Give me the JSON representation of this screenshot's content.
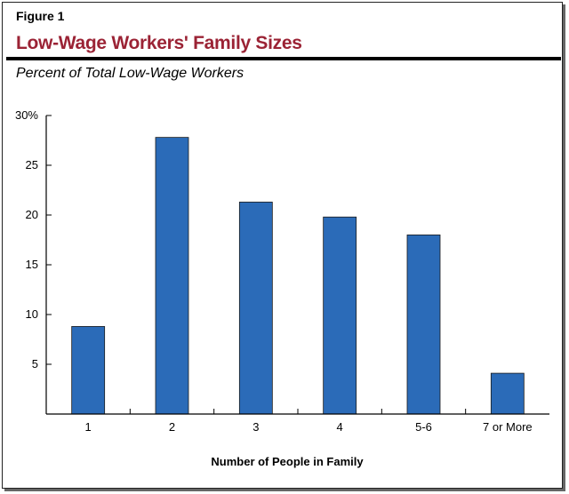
{
  "figure": {
    "label": "Figure 1",
    "title": "Low-Wage Workers' Family Sizes",
    "subtitle": "Percent of Total Low-Wage Workers"
  },
  "colors": {
    "title": "#9b2335",
    "bar": "#2b6bb8",
    "axis": "#000000"
  },
  "chart_data": {
    "type": "bar",
    "title": "Low-Wage Workers' Family Sizes",
    "subtitle": "Percent of Total Low-Wage Workers",
    "categories": [
      "1",
      "2",
      "3",
      "4",
      "5-6",
      "7 or More"
    ],
    "values": [
      8.8,
      27.8,
      21.3,
      19.8,
      18.0,
      4.1
    ],
    "xlabel": "Number of People in Family",
    "ylabel": "",
    "ylim": [
      0,
      30
    ],
    "yticks": [
      5,
      10,
      15,
      20,
      25,
      30
    ],
    "ytick_labels": [
      "5",
      "10",
      "15",
      "20",
      "25",
      "30%"
    ],
    "grid": false,
    "legend": "none"
  }
}
